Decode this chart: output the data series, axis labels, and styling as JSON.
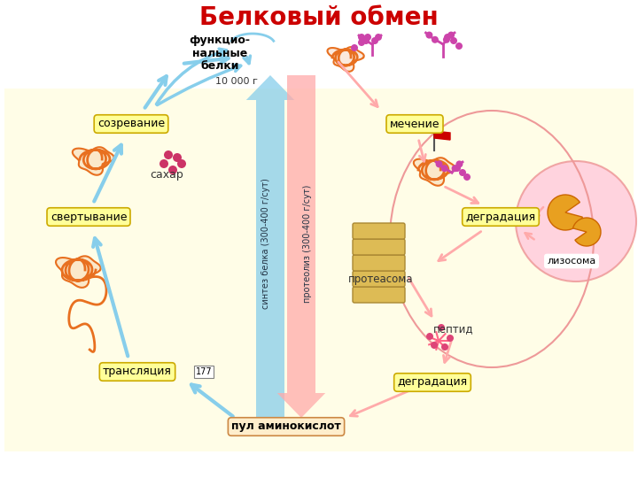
{
  "title": "Белковый обмен",
  "title_color": "#cc0000",
  "title_fontsize": 20,
  "bg_color": "#ffffff",
  "bg_yellow": "#fffde7",
  "label_box_color": "#ffff99",
  "label_box_edge": "#ccaa00",
  "labels": {
    "functional_proteins": "функцио-\nнальные\nбелки",
    "functional_10000": "10 000 г",
    "ripening": "созревание",
    "sugar": "сахар",
    "clotting": "свертывание",
    "translation": "трансляция",
    "amino_pool": "пул аминокислот",
    "marking": "мечение",
    "degradation1": "деградация",
    "proteasome": "протеасома",
    "peptide": "пептид",
    "degradation2": "деградация",
    "lysosome": "лизосома",
    "synthesis": "синтез белка (300-400 г/сут)",
    "proteolysis": "протеолиз (300-400 г/сут)",
    "page_num": "177"
  },
  "arrow_blue": "#87ceeb",
  "arrow_pink": "#ffaaaa",
  "arrow_red": "#cc3333"
}
